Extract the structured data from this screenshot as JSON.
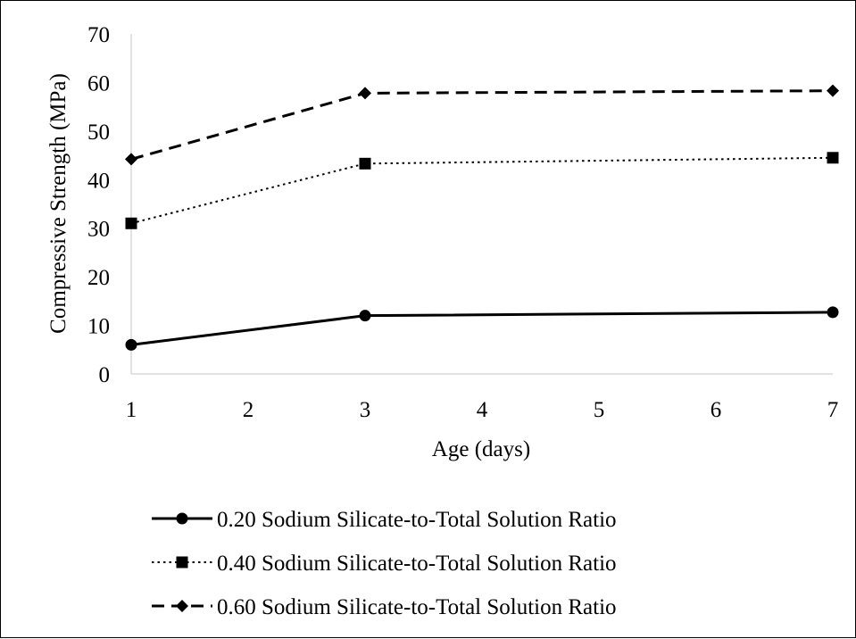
{
  "chart_data": {
    "type": "line",
    "title": "",
    "xlabel": "Age (days)",
    "ylabel": "Compressive Strength (MPa)",
    "xlim": [
      1,
      7
    ],
    "ylim": [
      0,
      70
    ],
    "x_ticks": [
      1,
      2,
      3,
      4,
      5,
      6,
      7
    ],
    "y_ticks": [
      0,
      10,
      20,
      30,
      40,
      50,
      60,
      70
    ],
    "grid": false,
    "legend_position": "bottom",
    "series": [
      {
        "name": "0.20 Sodium Silicate-to-Total Solution Ratio",
        "x": [
          1,
          3,
          7
        ],
        "y": [
          6.0,
          12.0,
          12.7
        ],
        "line_style": "solid",
        "marker": "circle",
        "color": "#000000"
      },
      {
        "name": "0.40 Sodium Silicate-to-Total Solution Ratio",
        "x": [
          1,
          3,
          7
        ],
        "y": [
          31.0,
          43.3,
          44.5
        ],
        "line_style": "dotted",
        "marker": "square",
        "color": "#000000"
      },
      {
        "name": "0.60 Sodium Silicate-to-Total Solution Ratio",
        "x": [
          1,
          3,
          7
        ],
        "y": [
          44.2,
          57.8,
          58.3
        ],
        "line_style": "dashed",
        "marker": "diamond",
        "color": "#000000"
      }
    ]
  }
}
